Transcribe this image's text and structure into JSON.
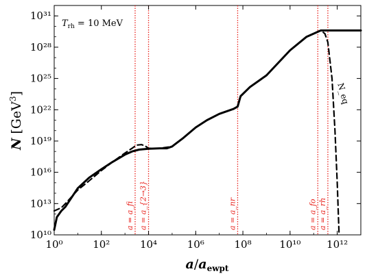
{
  "chart_data": {
    "type": "line",
    "xscale": "log",
    "yscale": "log",
    "xlim": [
      1,
      10000000000000.0
    ],
    "ylim": [
      10000000000.0,
      1e+32
    ],
    "xlabel": "a/a_ewpt",
    "ylabel": "N [GeV³]",
    "x_ticks": [
      {
        "value": 1,
        "label": "10⁰"
      },
      {
        "value": 100,
        "label": "10²"
      },
      {
        "value": 10000,
        "label": "10⁴"
      },
      {
        "value": 1000000,
        "label": "10⁶"
      },
      {
        "value": 100000000,
        "label": "10⁸"
      },
      {
        "value": 10000000000,
        "label": "10¹⁰"
      },
      {
        "value": 1000000000000,
        "label": "10¹²"
      }
    ],
    "y_ticks": [
      {
        "value": 10000000000.0,
        "label": "10¹⁰"
      },
      {
        "value": 10000000000000.0,
        "label": "10¹³"
      },
      {
        "value": 1e+16,
        "label": "10¹⁶"
      },
      {
        "value": 1e+19,
        "label": "10¹⁹"
      },
      {
        "value": 1e+22,
        "label": "10²²"
      },
      {
        "value": 1e+25,
        "label": "10²⁵"
      },
      {
        "value": 1e+28,
        "label": "10²⁸"
      },
      {
        "value": 1e+31,
        "label": "10³¹"
      }
    ],
    "annotation": "T_rh = 10 MeV",
    "colors": {
      "curve": "#000000",
      "vline": "#e8201a"
    },
    "series": [
      {
        "style": "solid",
        "points": [
          [
            1,
            30000000000.0
          ],
          [
            1.3,
            500000000000.0
          ],
          [
            2,
            2000000000000.0
          ],
          [
            3,
            5000000000000.0
          ],
          [
            10,
            300000000000000.0
          ],
          [
            30,
            3000000000000000.0
          ],
          [
            100,
            2e+16
          ],
          [
            300,
            1e+17
          ],
          [
            1000,
            5e+17
          ],
          [
            2000,
            1e+18
          ],
          [
            4000,
            1.5e+18
          ],
          [
            10000,
            1.8e+18
          ],
          [
            30000,
            2e+18
          ],
          [
            60000,
            2e+18
          ],
          [
            100000,
            3e+18
          ],
          [
            300000,
            2e+19
          ],
          [
            1000000,
            2e+20
          ],
          [
            3000000,
            1e+21
          ],
          [
            10000000,
            4e+21
          ],
          [
            40000000,
            1.2e+22
          ],
          [
            60000000,
            2e+22
          ],
          [
            80000000,
            2e+23
          ],
          [
            200000000,
            1.5e+24
          ],
          [
            1000000000,
            2e+25
          ],
          [
            10000000000,
            5e+27
          ],
          [
            50000000000,
            1e+29
          ],
          [
            200000000000,
            4e+29
          ],
          [
            1000000000000,
            4e+29
          ],
          [
            10000000000000,
            4e+29
          ]
        ]
      },
      {
        "name": "N_eq",
        "style": "dashed",
        "points": [
          [
            1,
            2000000000000.0
          ],
          [
            2,
            4000000000000.0
          ],
          [
            3,
            10000000000000.0
          ],
          [
            10,
            200000000000000.0
          ],
          [
            30,
            1500000000000000.0
          ],
          [
            100,
            1.5e+16
          ],
          [
            300,
            1e+17
          ],
          [
            1000,
            7e+17
          ],
          [
            2000,
            2e+18
          ],
          [
            3000,
            4e+18
          ],
          [
            5000,
            4.5e+18
          ],
          [
            7000,
            3.5e+18
          ],
          [
            10000,
            2e+18
          ],
          [
            30000,
            2e+18
          ],
          [
            100000,
            3e+18
          ],
          [
            300000,
            2e+19
          ],
          [
            1000000,
            2e+20
          ],
          [
            3000000,
            1e+21
          ],
          [
            10000000,
            4e+21
          ],
          [
            40000000,
            1.2e+22
          ],
          [
            60000000,
            2e+22
          ],
          [
            80000000,
            2e+23
          ],
          [
            200000000,
            1.5e+24
          ],
          [
            1000000000,
            2e+25
          ],
          [
            10000000000,
            5e+27
          ],
          [
            50000000000,
            1e+29
          ],
          [
            200000000000,
            4e+29
          ],
          [
            300000000000,
            2e+29
          ],
          [
            400000000000,
            3e+28
          ],
          [
            600000000000,
            1e+25
          ],
          [
            800000000000,
            1e+20
          ],
          [
            1000000000000,
            1000000000000000.0
          ],
          [
            1200000000000,
            10000000000.0
          ]
        ]
      }
    ],
    "vlines": [
      {
        "x": 2700,
        "label": "a = a_fi",
        "style": "dotted"
      },
      {
        "x": 10000,
        "label": "a = a_{2→3}",
        "style": "dotted"
      },
      {
        "x": 60000000,
        "label": "a = a_nr",
        "style": "dotted"
      },
      {
        "x": 150000000000,
        "label": "a = a_fo",
        "style": "dotted"
      },
      {
        "x": 400000000000,
        "label": "a = a_rh",
        "style": "dotted"
      }
    ],
    "curve_label": {
      "text": "N_eq",
      "x": 700000000000,
      "y": 3e+24
    }
  }
}
